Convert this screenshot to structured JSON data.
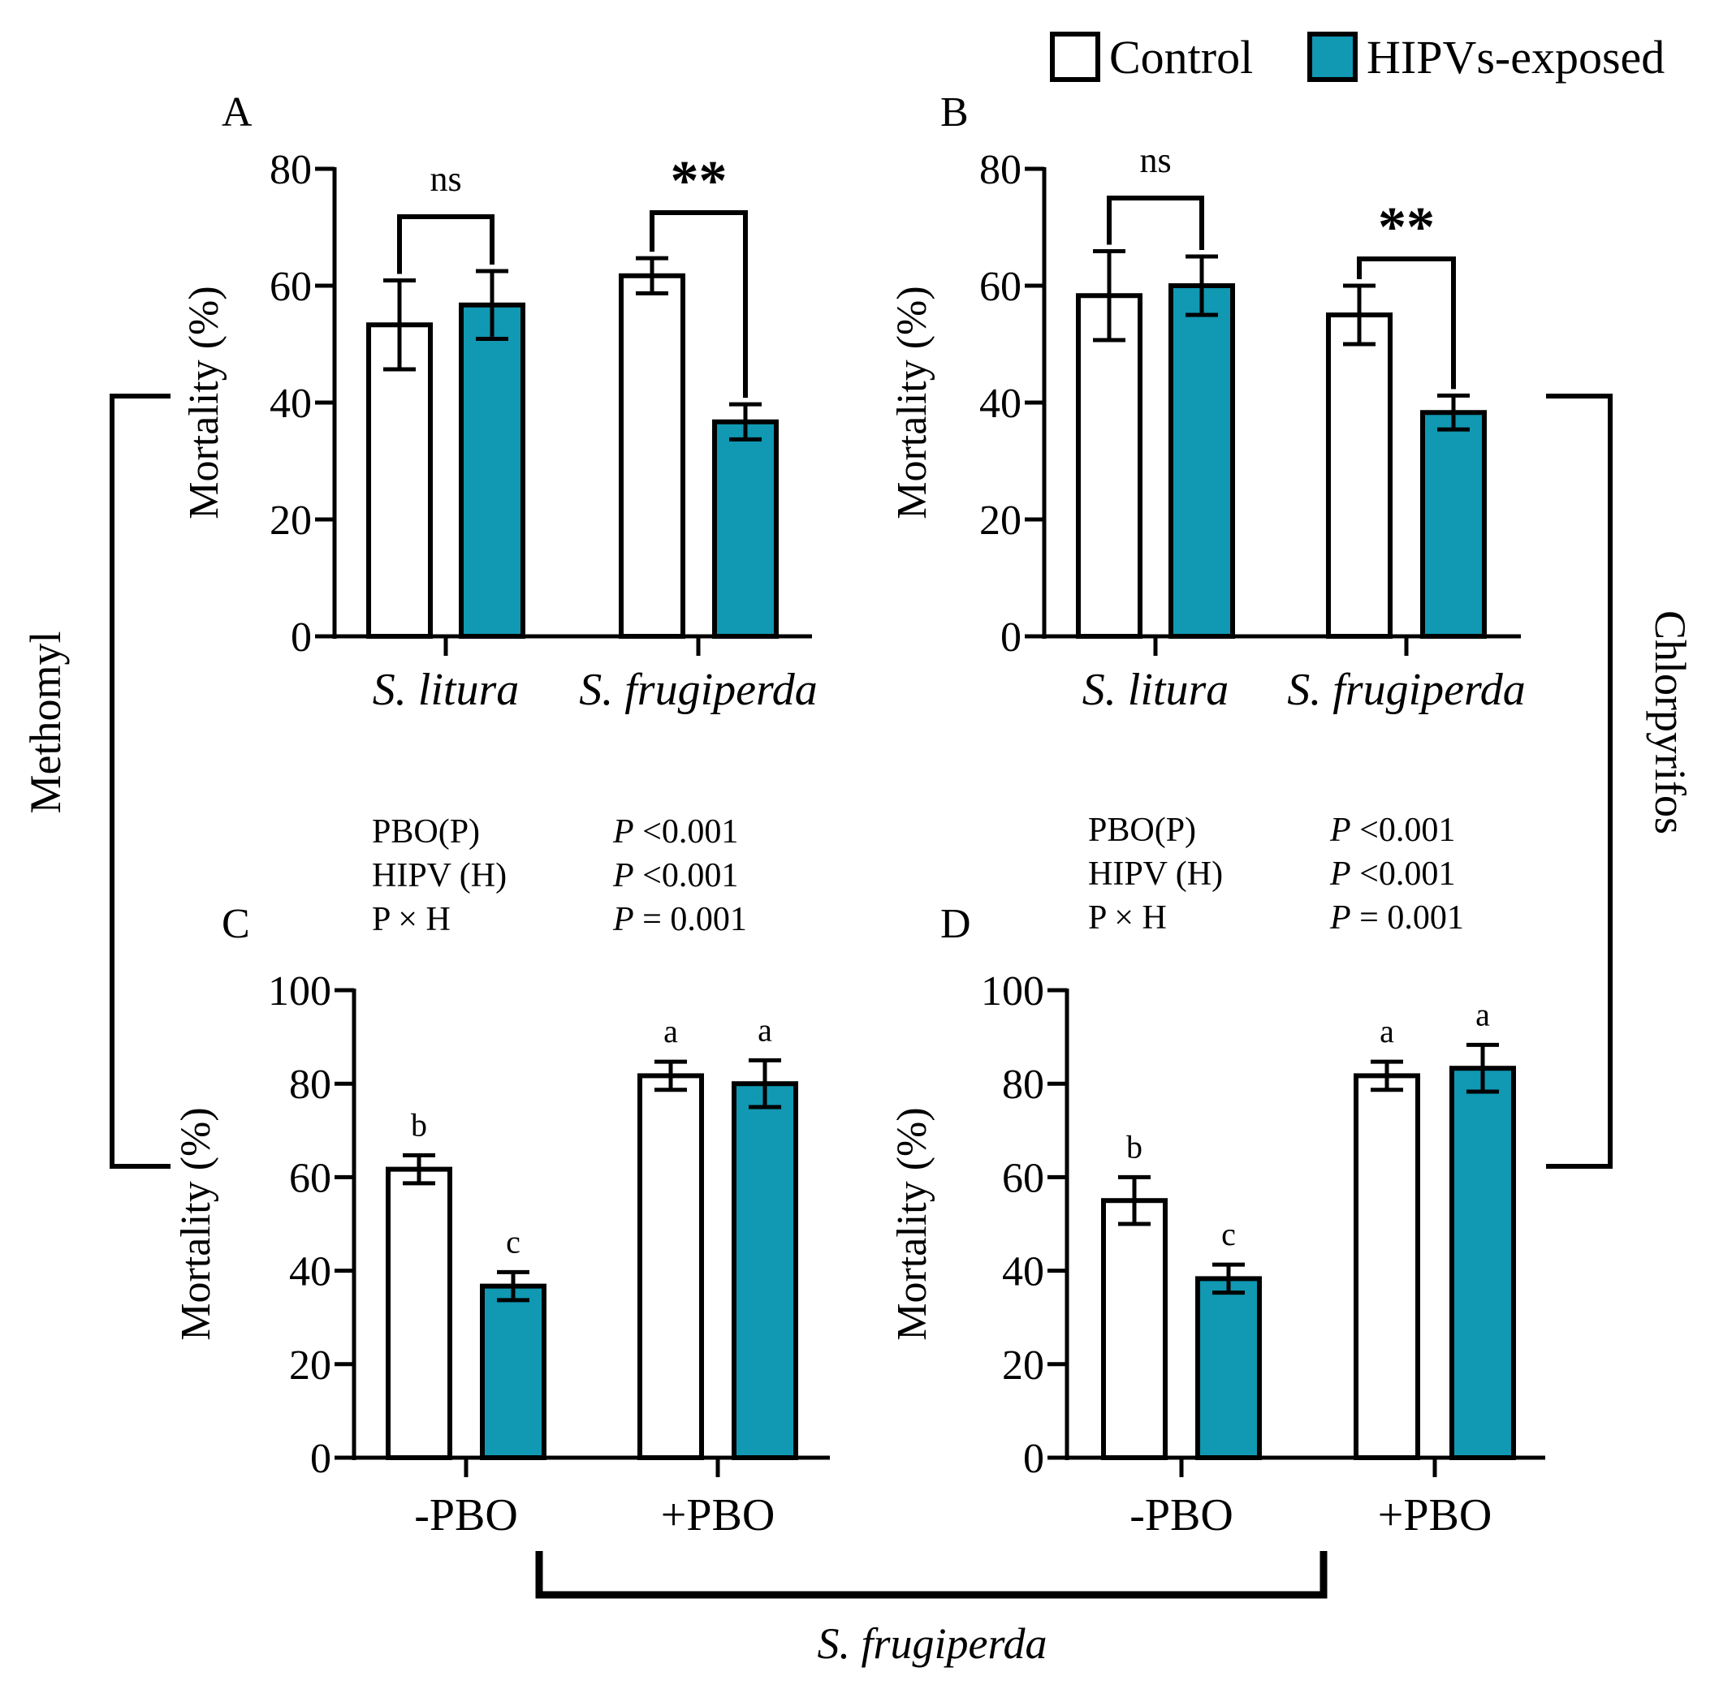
{
  "legend": {
    "control": "Control",
    "hipv": "HIPVs-exposed"
  },
  "colors": {
    "control_fill": "#ffffff",
    "hipv_fill": "#1198b2",
    "stroke": "#000000"
  },
  "side_labels": {
    "left": "Methomyl",
    "right": "Chlorpyrifos",
    "bottom": "S. frugiperda"
  },
  "chart_data": [
    {
      "id": "A",
      "type": "bar",
      "panel_letter": "A",
      "ylabel": "Mortality (%)",
      "ylim": [
        0,
        80
      ],
      "yticks": [
        0,
        20,
        40,
        60,
        80
      ],
      "categories": [
        "S. litura",
        "S. frugiperda"
      ],
      "category_italic": true,
      "series": [
        {
          "name": "Control",
          "values": [
            53.3,
            61.7
          ],
          "errors": [
            7.6,
            3.0
          ]
        },
        {
          "name": "HIPVs-exposed",
          "values": [
            56.7,
            36.7
          ],
          "errors": [
            5.8,
            3.0
          ]
        }
      ],
      "significance": [
        "ns",
        "**"
      ]
    },
    {
      "id": "B",
      "type": "bar",
      "panel_letter": "B",
      "ylabel": "Mortality (%)",
      "ylim": [
        0,
        80
      ],
      "yticks": [
        0,
        20,
        40,
        60,
        80
      ],
      "categories": [
        "S. litura",
        "S. frugiperda"
      ],
      "category_italic": true,
      "series": [
        {
          "name": "Control",
          "values": [
            58.3,
            55.0
          ],
          "errors": [
            7.6,
            5.0
          ]
        },
        {
          "name": "HIPVs-exposed",
          "values": [
            60.0,
            38.3
          ],
          "errors": [
            5.0,
            2.9
          ]
        }
      ],
      "significance": [
        "ns",
        "**"
      ]
    },
    {
      "id": "C",
      "type": "bar",
      "panel_letter": "C",
      "ylabel": "Mortality (%)",
      "ylim": [
        0,
        100
      ],
      "yticks": [
        0,
        20,
        40,
        60,
        80,
        100
      ],
      "categories": [
        "-PBO",
        "+PBO"
      ],
      "category_italic": false,
      "series": [
        {
          "name": "Control",
          "values": [
            61.7,
            81.7
          ],
          "errors": [
            3.0,
            3.0
          ],
          "letters": [
            "b",
            "a"
          ]
        },
        {
          "name": "HIPVs-exposed",
          "values": [
            36.7,
            80.0
          ],
          "errors": [
            3.0,
            5.0
          ],
          "letters": [
            "c",
            "a"
          ]
        }
      ],
      "stats": [
        {
          "term": "PBO(P)",
          "p": "P",
          "value": " <0.001"
        },
        {
          "term": "HIPV (H)",
          "p": "P",
          "value": " <0.001"
        },
        {
          "term": "P × H",
          "p": "P",
          "value": " = 0.001"
        }
      ]
    },
    {
      "id": "D",
      "type": "bar",
      "panel_letter": "D",
      "ylabel": "Mortality (%)",
      "ylim": [
        0,
        100
      ],
      "yticks": [
        0,
        20,
        40,
        60,
        80,
        100
      ],
      "categories": [
        "-PBO",
        "+PBO"
      ],
      "category_italic": false,
      "series": [
        {
          "name": "Control",
          "values": [
            55.0,
            81.7
          ],
          "errors": [
            5.0,
            3.0
          ],
          "letters": [
            "b",
            "a"
          ]
        },
        {
          "name": "HIPVs-exposed",
          "values": [
            38.3,
            83.3
          ],
          "errors": [
            3.0,
            5.0
          ],
          "letters": [
            "c",
            "a"
          ]
        }
      ],
      "stats": [
        {
          "term": "PBO(P)",
          "p": "P",
          "value": " <0.001"
        },
        {
          "term": "HIPV (H)",
          "p": "P",
          "value": " <0.001"
        },
        {
          "term": "P × H",
          "p": "P",
          "value": " = 0.001"
        }
      ]
    }
  ]
}
